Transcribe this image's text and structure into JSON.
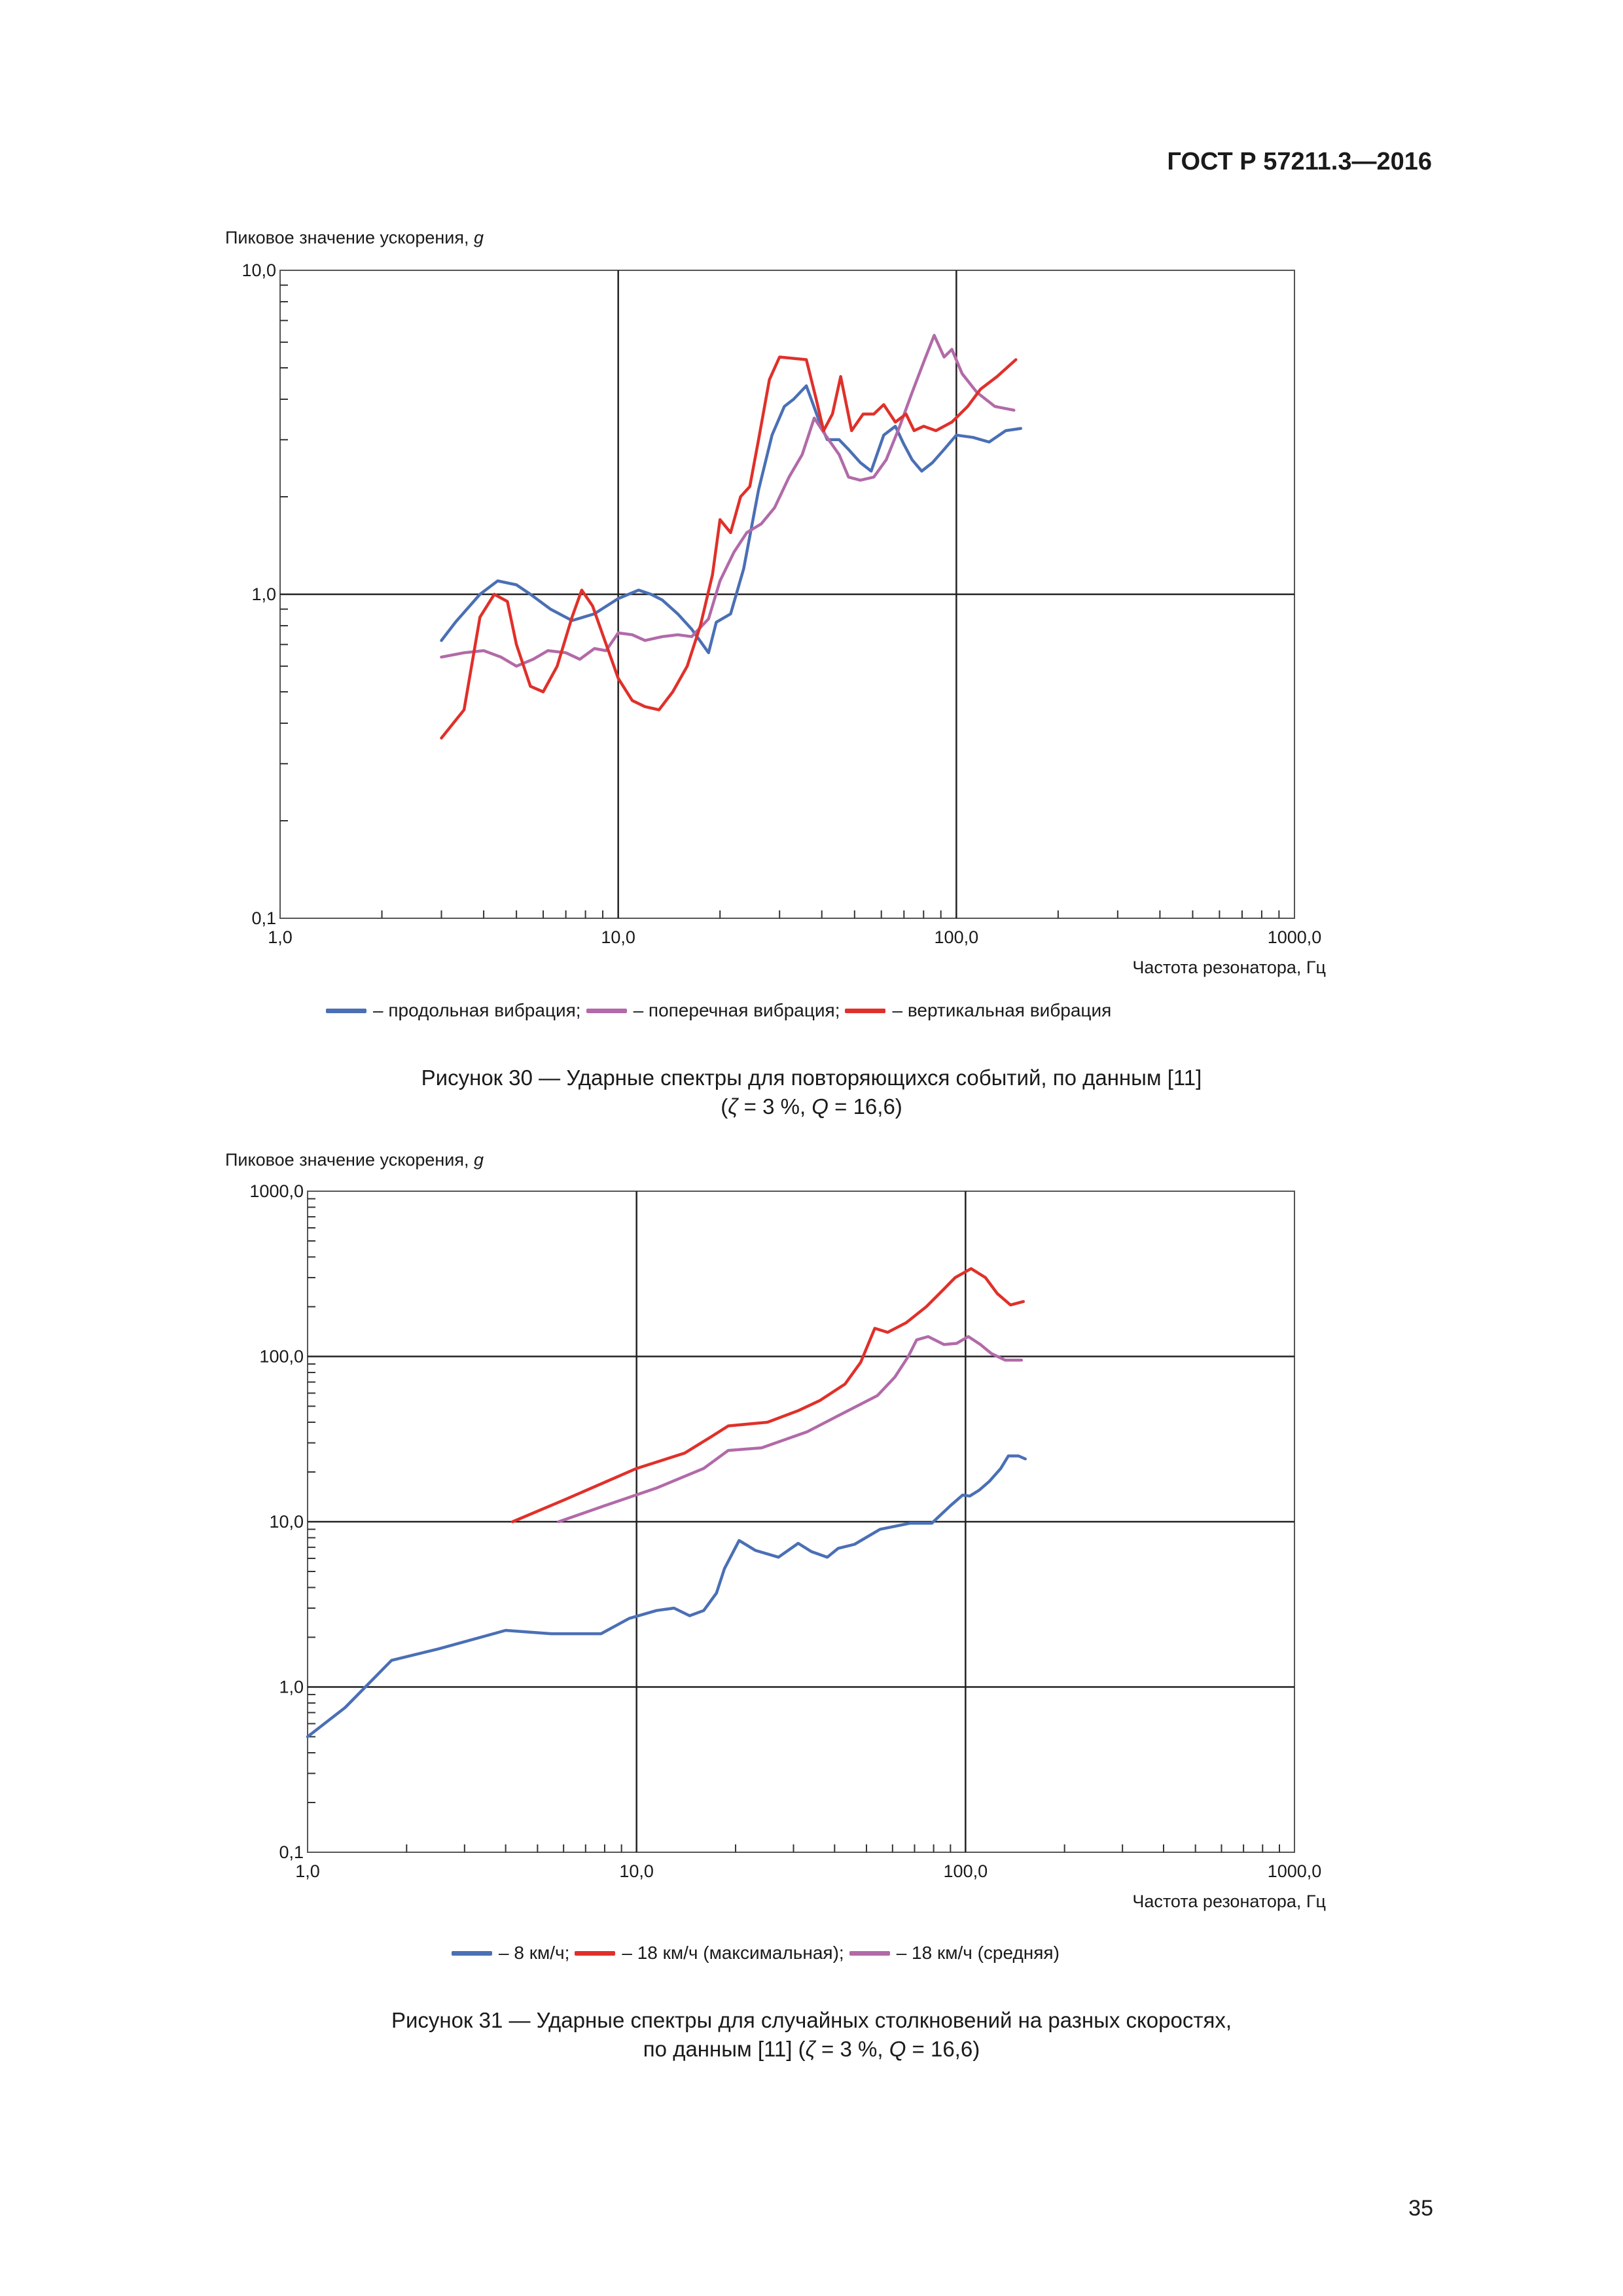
{
  "header": {
    "doc_code": "ГОСТ Р 57211.3—2016"
  },
  "page_number": "35",
  "figures": [
    {
      "ylabel_text": "Пиковое значение ускорения, ",
      "ylabel_unit": "g",
      "xlabel": "Частота резонатора, Гц",
      "caption_line1": "Рисунок 30 — Ударные спектры для повторяющихся событий, по данным [11]",
      "caption_line2_parts": [
        "(",
        "ζ",
        " = 3 %, ",
        "Q",
        " = 16,6)"
      ],
      "legend": [
        {
          "label": "– продольная вибрация;",
          "color": "#4a6fb5"
        },
        {
          "label": "– поперечная вибрация;",
          "color": "#b26aa8"
        },
        {
          "label": "– вертикальная вибрация",
          "color": "#e0302a"
        }
      ]
    },
    {
      "ylabel_text": "Пиковое значение ускорения, ",
      "ylabel_unit": "g",
      "xlabel": "Частота резонатора, Гц",
      "caption_line1": "Рисунок 31 — Ударные спектры для случайных столкновений на разных скоростях,",
      "caption_line2_parts": [
        "по данным [11] (",
        "ζ",
        " = 3 %, ",
        "Q",
        " = 16,6)"
      ],
      "legend": [
        {
          "label": "– 8 км/ч;",
          "color": "#4a6fb5"
        },
        {
          "label": "– 18 км/ч (максимальная);",
          "color": "#e0302a"
        },
        {
          "label": "– 18 км/ч (средняя)",
          "color": "#b26aa8"
        }
      ]
    }
  ],
  "chart_data": [
    {
      "type": "line",
      "xscale": "log",
      "yscale": "log",
      "xlim": [
        1,
        1000
      ],
      "ylim": [
        0.1,
        10
      ],
      "x_ticks": [
        1,
        10,
        100,
        1000
      ],
      "x_tick_labels": [
        "1,0",
        "10,0",
        "100,0",
        "1000,0"
      ],
      "y_ticks": [
        0.1,
        1,
        10
      ],
      "y_tick_labels": [
        "0,1",
        "1,0",
        "10,0"
      ],
      "major_grid_x": [
        10,
        100
      ],
      "major_grid_y": [
        1
      ],
      "legend_position": "bottom",
      "series": [
        {
          "name": "продольная вибрация",
          "color": "#4a6fb5",
          "points": [
            [
              3.0,
              0.72
            ],
            [
              3.3,
              0.82
            ],
            [
              3.9,
              1.0
            ],
            [
              4.4,
              1.1
            ],
            [
              5.0,
              1.07
            ],
            [
              5.5,
              1.0
            ],
            [
              6.3,
              0.9
            ],
            [
              7.3,
              0.83
            ],
            [
              8.5,
              0.87
            ],
            [
              10.0,
              0.97
            ],
            [
              11.5,
              1.03
            ],
            [
              12.5,
              1.0
            ],
            [
              13.5,
              0.96
            ],
            [
              15.0,
              0.87
            ],
            [
              16.5,
              0.78
            ],
            [
              18.5,
              0.66
            ],
            [
              19.5,
              0.82
            ],
            [
              21.5,
              0.87
            ],
            [
              23.5,
              1.2
            ],
            [
              26.0,
              2.1
            ],
            [
              28.5,
              3.1
            ],
            [
              31.0,
              3.8
            ],
            [
              33.0,
              4.0
            ],
            [
              36.0,
              4.4
            ],
            [
              39.0,
              3.5
            ],
            [
              41.5,
              3.0
            ],
            [
              45.0,
              3.0
            ],
            [
              48.0,
              2.8
            ],
            [
              52.0,
              2.55
            ],
            [
              56.0,
              2.4
            ],
            [
              61.0,
              3.1
            ],
            [
              66.0,
              3.3
            ],
            [
              70.0,
              2.9
            ],
            [
              74.0,
              2.6
            ],
            [
              79.0,
              2.4
            ],
            [
              85.0,
              2.55
            ],
            [
              92.0,
              2.8
            ],
            [
              100.0,
              3.1
            ],
            [
              112.0,
              3.05
            ],
            [
              125.0,
              2.95
            ],
            [
              140.0,
              3.2
            ],
            [
              155.0,
              3.25
            ]
          ]
        },
        {
          "name": "поперечная вибрация",
          "color": "#b26aa8",
          "points": [
            [
              3.0,
              0.64
            ],
            [
              3.5,
              0.66
            ],
            [
              4.0,
              0.67
            ],
            [
              4.5,
              0.64
            ],
            [
              5.0,
              0.6
            ],
            [
              5.6,
              0.63
            ],
            [
              6.2,
              0.67
            ],
            [
              7.0,
              0.66
            ],
            [
              7.7,
              0.63
            ],
            [
              8.5,
              0.68
            ],
            [
              9.2,
              0.67
            ],
            [
              10.0,
              0.76
            ],
            [
              11.0,
              0.75
            ],
            [
              12.0,
              0.72
            ],
            [
              13.5,
              0.74
            ],
            [
              15.0,
              0.75
            ],
            [
              16.5,
              0.74
            ],
            [
              18.5,
              0.84
            ],
            [
              20.0,
              1.1
            ],
            [
              22.0,
              1.35
            ],
            [
              24.0,
              1.55
            ],
            [
              26.5,
              1.65
            ],
            [
              29.0,
              1.85
            ],
            [
              32.0,
              2.3
            ],
            [
              35.0,
              2.7
            ],
            [
              38.0,
              3.5
            ],
            [
              41.0,
              3.1
            ],
            [
              45.0,
              2.7
            ],
            [
              48.0,
              2.3
            ],
            [
              52.0,
              2.25
            ],
            [
              57.0,
              2.3
            ],
            [
              62.0,
              2.6
            ],
            [
              68.0,
              3.3
            ],
            [
              74.0,
              4.2
            ],
            [
              80.0,
              5.2
            ],
            [
              86.0,
              6.3
            ],
            [
              92.0,
              5.4
            ],
            [
              97.0,
              5.7
            ],
            [
              104.0,
              4.8
            ],
            [
              115.0,
              4.2
            ],
            [
              130.0,
              3.8
            ],
            [
              148.0,
              3.7
            ]
          ]
        },
        {
          "name": "вертикальная вибрация",
          "color": "#e0302a",
          "points": [
            [
              3.0,
              0.36
            ],
            [
              3.5,
              0.44
            ],
            [
              3.9,
              0.85
            ],
            [
              4.3,
              1.0
            ],
            [
              4.7,
              0.95
            ],
            [
              5.0,
              0.7
            ],
            [
              5.5,
              0.52
            ],
            [
              6.0,
              0.5
            ],
            [
              6.6,
              0.6
            ],
            [
              7.3,
              0.85
            ],
            [
              7.8,
              1.03
            ],
            [
              8.4,
              0.92
            ],
            [
              9.0,
              0.75
            ],
            [
              10.0,
              0.55
            ],
            [
              11.0,
              0.47
            ],
            [
              12.0,
              0.45
            ],
            [
              13.2,
              0.44
            ],
            [
              14.5,
              0.5
            ],
            [
              16.0,
              0.6
            ],
            [
              17.5,
              0.8
            ],
            [
              19.0,
              1.15
            ],
            [
              20.0,
              1.7
            ],
            [
              21.5,
              1.55
            ],
            [
              23.0,
              2.0
            ],
            [
              24.5,
              2.15
            ],
            [
              26.0,
              3.0
            ],
            [
              28.0,
              4.6
            ],
            [
              30.0,
              5.4
            ],
            [
              36.0,
              5.3
            ],
            [
              38.5,
              4.0
            ],
            [
              40.5,
              3.2
            ],
            [
              43.0,
              3.6
            ],
            [
              45.5,
              4.7
            ],
            [
              49.0,
              3.2
            ],
            [
              53.0,
              3.6
            ],
            [
              57.0,
              3.6
            ],
            [
              61.0,
              3.85
            ],
            [
              66.0,
              3.4
            ],
            [
              71.0,
              3.6
            ],
            [
              75.0,
              3.2
            ],
            [
              80.0,
              3.3
            ],
            [
              87.0,
              3.2
            ],
            [
              97.0,
              3.4
            ],
            [
              108.0,
              3.8
            ],
            [
              118.0,
              4.3
            ],
            [
              132.0,
              4.7
            ],
            [
              150.0,
              5.3
            ]
          ]
        }
      ]
    },
    {
      "type": "line",
      "xscale": "log",
      "yscale": "log",
      "xlim": [
        1,
        1000
      ],
      "ylim": [
        0.1,
        1000
      ],
      "x_ticks": [
        1,
        10,
        100,
        1000
      ],
      "x_tick_labels": [
        "1,0",
        "10,0",
        "100,0",
        "1000,0"
      ],
      "y_ticks": [
        0.1,
        1,
        10,
        100,
        1000
      ],
      "y_tick_labels": [
        "0,1",
        "1,0",
        "10,0",
        "100,0",
        "1000,0"
      ],
      "major_grid_x": [
        10,
        100
      ],
      "major_grid_y": [
        1,
        10,
        100
      ],
      "legend_position": "bottom",
      "series": [
        {
          "name": "8 км/ч",
          "color": "#4a6fb5",
          "points": [
            [
              1.0,
              0.5
            ],
            [
              1.3,
              0.75
            ],
            [
              1.8,
              1.45
            ],
            [
              2.5,
              1.7
            ],
            [
              4.0,
              2.2
            ],
            [
              5.5,
              2.1
            ],
            [
              7.8,
              2.1
            ],
            [
              9.5,
              2.6
            ],
            [
              11.5,
              2.9
            ],
            [
              13.0,
              3.0
            ],
            [
              14.5,
              2.7
            ],
            [
              16.0,
              2.9
            ],
            [
              17.5,
              3.7
            ],
            [
              18.5,
              5.2
            ],
            [
              20.5,
              7.7
            ],
            [
              23.0,
              6.7
            ],
            [
              27.0,
              6.1
            ],
            [
              31.0,
              7.4
            ],
            [
              34.0,
              6.6
            ],
            [
              38.0,
              6.1
            ],
            [
              41.0,
              6.9
            ],
            [
              46.0,
              7.3
            ],
            [
              55.0,
              9.0
            ],
            [
              68.0,
              9.8
            ],
            [
              79.0,
              9.8
            ],
            [
              90.0,
              12.5
            ],
            [
              98.0,
              14.5
            ],
            [
              103.0,
              14.3
            ],
            [
              110.0,
              15.5
            ],
            [
              118.0,
              17.5
            ],
            [
              128.0,
              21.0
            ],
            [
              135.0,
              25.0
            ],
            [
              145.0,
              25.0
            ],
            [
              152.0,
              24.0
            ]
          ]
        },
        {
          "name": "18 км/ч (максимальная)",
          "color": "#e0302a",
          "points": [
            [
              4.2,
              10.0
            ],
            [
              6.0,
              13.5
            ],
            [
              10.0,
              21.0
            ],
            [
              14.0,
              26.0
            ],
            [
              17.0,
              33.0
            ],
            [
              19.0,
              38.0
            ],
            [
              25.0,
              40.0
            ],
            [
              31.0,
              47.0
            ],
            [
              36.0,
              54.0
            ],
            [
              43.0,
              68.0
            ],
            [
              48.0,
              92.0
            ],
            [
              53.0,
              148.0
            ],
            [
              58.0,
              140.0
            ],
            [
              66.0,
              160.0
            ],
            [
              76.0,
              200.0
            ],
            [
              85.0,
              250.0
            ],
            [
              93.0,
              300.0
            ],
            [
              104.0,
              340.0
            ],
            [
              115.0,
              300.0
            ],
            [
              125.0,
              240.0
            ],
            [
              137.0,
              205.0
            ],
            [
              150.0,
              215.0
            ]
          ]
        },
        {
          "name": "18 км/ч (средняя)",
          "color": "#b26aa8",
          "points": [
            [
              5.8,
              10.0
            ],
            [
              8.0,
              12.5
            ],
            [
              11.5,
              16.0
            ],
            [
              16.0,
              21.0
            ],
            [
              19.0,
              27.0
            ],
            [
              24.0,
              28.0
            ],
            [
              33.0,
              35.0
            ],
            [
              43.0,
              46.0
            ],
            [
              54.0,
              58.0
            ],
            [
              61.0,
              75.0
            ],
            [
              67.0,
              100.0
            ],
            [
              71.0,
              126.0
            ],
            [
              77.0,
              132.0
            ],
            [
              86.0,
              118.0
            ],
            [
              94.0,
              120.0
            ],
            [
              102.0,
              132.0
            ],
            [
              111.0,
              118.0
            ],
            [
              120.0,
              104.0
            ],
            [
              132.0,
              95.0
            ],
            [
              148.0,
              95.0
            ]
          ]
        }
      ]
    }
  ]
}
